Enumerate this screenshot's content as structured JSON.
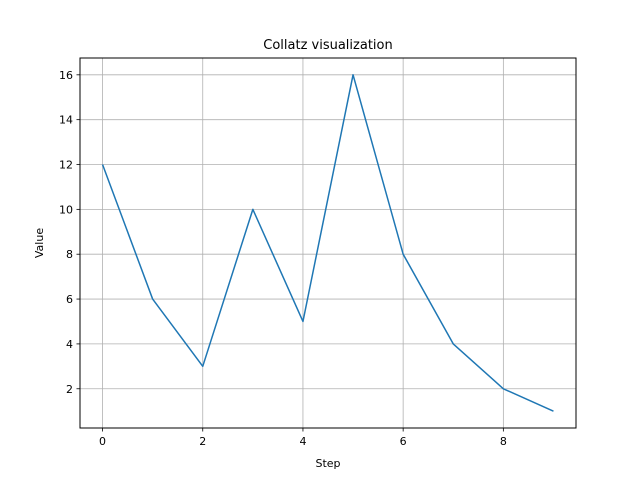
{
  "chart_data": {
    "type": "line",
    "title": "Collatz visualization",
    "xlabel": "Step",
    "ylabel": "Value",
    "x": [
      0,
      1,
      2,
      3,
      4,
      5,
      6,
      7,
      8,
      9
    ],
    "series": [
      {
        "values": [
          12,
          6,
          3,
          10,
          5,
          16,
          8,
          4,
          2,
          1
        ]
      }
    ],
    "xlim": [
      -0.45,
      9.45
    ],
    "ylim": [
      0.25,
      16.75
    ],
    "xticks": [
      0,
      2,
      4,
      6,
      8
    ],
    "yticks": [
      2,
      4,
      6,
      8,
      10,
      12,
      14,
      16
    ],
    "grid": true,
    "line_color": "#1f77b4"
  }
}
